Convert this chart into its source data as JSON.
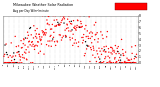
{
  "title": "Milwaukee Weather Solar Radiation",
  "subtitle": "Avg per Day W/m²/minute",
  "ylim": [
    0,
    8
  ],
  "yticks": [
    0,
    1,
    2,
    3,
    4,
    5,
    6,
    7,
    8
  ],
  "background_color": "#ffffff",
  "grid_color": "#bbbbbb",
  "legend_box_color": "#ff0000",
  "point_color_main": "#ff0000",
  "point_color_alt": "#000000",
  "n_points": 365,
  "seed": 42,
  "figsize": [
    1.6,
    0.87
  ],
  "dpi": 100
}
